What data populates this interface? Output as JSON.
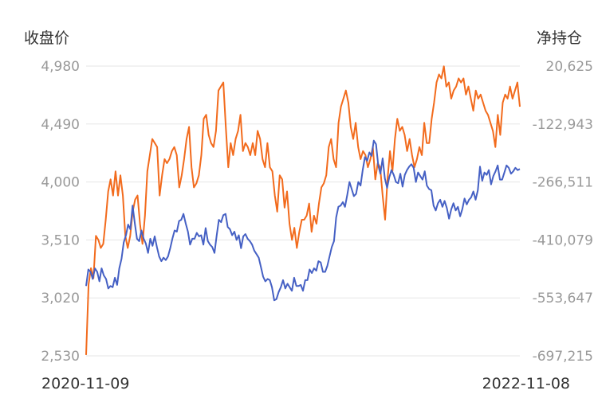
{
  "chart_data": {
    "type": "line",
    "title": "",
    "y_left_label": "收盘价",
    "y_right_label": "净持仓",
    "x_start": "2020-11-09",
    "x_end": "2022-11-08",
    "y_left_ticks": [
      "4,980",
      "4,490",
      "4,000",
      "3,510",
      "3,020",
      "2,530"
    ],
    "y_right_ticks": [
      "20,625",
      "-122,943",
      "-266,511",
      "-410,079",
      "-553,647",
      "-697,215"
    ],
    "ylim_left": [
      2530,
      4980
    ],
    "ylim_right": [
      -697215,
      20625
    ],
    "grid": true,
    "series": [
      {
        "axis": "left",
        "color": "#4560c4",
        "values": [
          3120,
          3260,
          3240,
          3180,
          3270,
          3240,
          3160,
          3270,
          3210,
          3180,
          3100,
          3120,
          3110,
          3190,
          3130,
          3270,
          3350,
          3490,
          3550,
          3640,
          3600,
          3800,
          3650,
          3520,
          3500,
          3590,
          3520,
          3480,
          3400,
          3520,
          3460,
          3540,
          3450,
          3370,
          3330,
          3360,
          3340,
          3370,
          3440,
          3520,
          3590,
          3580,
          3670,
          3680,
          3730,
          3650,
          3580,
          3470,
          3520,
          3520,
          3570,
          3540,
          3550,
          3470,
          3610,
          3500,
          3470,
          3450,
          3400,
          3550,
          3680,
          3660,
          3720,
          3730,
          3620,
          3600,
          3550,
          3580,
          3510,
          3550,
          3440,
          3540,
          3560,
          3520,
          3500,
          3470,
          3420,
          3390,
          3360,
          3280,
          3200,
          3160,
          3180,
          3170,
          3110,
          3000,
          3010,
          3070,
          3110,
          3170,
          3100,
          3140,
          3110,
          3080,
          3190,
          3120,
          3120,
          3130,
          3080,
          3170,
          3170,
          3260,
          3230,
          3270,
          3250,
          3330,
          3320,
          3240,
          3240,
          3290,
          3370,
          3450,
          3500,
          3700,
          3790,
          3800,
          3830,
          3790,
          3890,
          4000,
          3940,
          3880,
          3900,
          4000,
          3970,
          4100,
          4210,
          4180,
          4250,
          4220,
          4350,
          4320,
          4140,
          4070,
          4200,
          4030,
          3950,
          4040,
          4100,
          4060,
          4000,
          3990,
          4070,
          3960,
          4060,
          4100,
          4130,
          4150,
          4120,
          4000,
          4080,
          4050,
          4020,
          4090,
          3970,
          3940,
          3930,
          3800,
          3760,
          3820,
          3850,
          3790,
          3840,
          3780,
          3690,
          3770,
          3820,
          3760,
          3790,
          3710,
          3770,
          3860,
          3810,
          3850,
          3870,
          3920,
          3850,
          3930,
          4130,
          4010,
          4080,
          4060,
          4100,
          3980,
          4050,
          4090,
          4140,
          4020,
          4020,
          4080,
          4140,
          4120,
          4070,
          4090,
          4120,
          4100,
          4110
        ]
      },
      {
        "axis": "right",
        "color": "#f26b1d",
        "values": [
          -695000,
          -520000,
          -480000,
          -505000,
          -400000,
          -410000,
          -430000,
          -420000,
          -360000,
          -290000,
          -260000,
          -300000,
          -240000,
          -300000,
          -250000,
          -300000,
          -400000,
          -430000,
          -400000,
          -340000,
          -310000,
          -300000,
          -370000,
          -420000,
          -350000,
          -240000,
          -200000,
          -160000,
          -170000,
          -180000,
          -300000,
          -250000,
          -210000,
          -220000,
          -210000,
          -190000,
          -180000,
          -200000,
          -280000,
          -250000,
          -210000,
          -160000,
          -130000,
          -230000,
          -280000,
          -270000,
          -250000,
          -200000,
          -110000,
          -100000,
          -150000,
          -170000,
          -180000,
          -140000,
          -40000,
          -30000,
          -20000,
          -130000,
          -230000,
          -170000,
          -200000,
          -160000,
          -140000,
          -100000,
          -190000,
          -170000,
          -180000,
          -200000,
          -170000,
          -200000,
          -140000,
          -160000,
          -210000,
          -230000,
          -170000,
          -230000,
          -240000,
          -300000,
          -340000,
          -250000,
          -260000,
          -330000,
          -290000,
          -370000,
          -410000,
          -380000,
          -430000,
          -390000,
          -360000,
          -360000,
          -350000,
          -320000,
          -390000,
          -350000,
          -370000,
          -320000,
          -280000,
          -270000,
          -250000,
          -180000,
          -160000,
          -210000,
          -230000,
          -120000,
          -80000,
          -60000,
          -40000,
          -70000,
          -130000,
          -160000,
          -120000,
          -180000,
          -210000,
          -190000,
          -200000,
          -230000,
          -210000,
          -180000,
          -260000,
          -220000,
          -230000,
          -300000,
          -360000,
          -260000,
          -190000,
          -240000,
          -160000,
          -110000,
          -140000,
          -130000,
          -150000,
          -190000,
          -160000,
          -200000,
          -230000,
          -210000,
          -180000,
          -200000,
          -120000,
          -170000,
          -170000,
          -110000,
          -70000,
          -20000,
          0,
          -10000,
          20000,
          -30000,
          -20000,
          -60000,
          -40000,
          -30000,
          -10000,
          -20000,
          -10000,
          -50000,
          -30000,
          -60000,
          -90000,
          -40000,
          -60000,
          -50000,
          -70000,
          -90000,
          -100000,
          -120000,
          -140000,
          -180000,
          -100000,
          -150000,
          -70000,
          -50000,
          -60000,
          -30000,
          -60000,
          -40000,
          -20000,
          -80000
        ]
      }
    ]
  }
}
